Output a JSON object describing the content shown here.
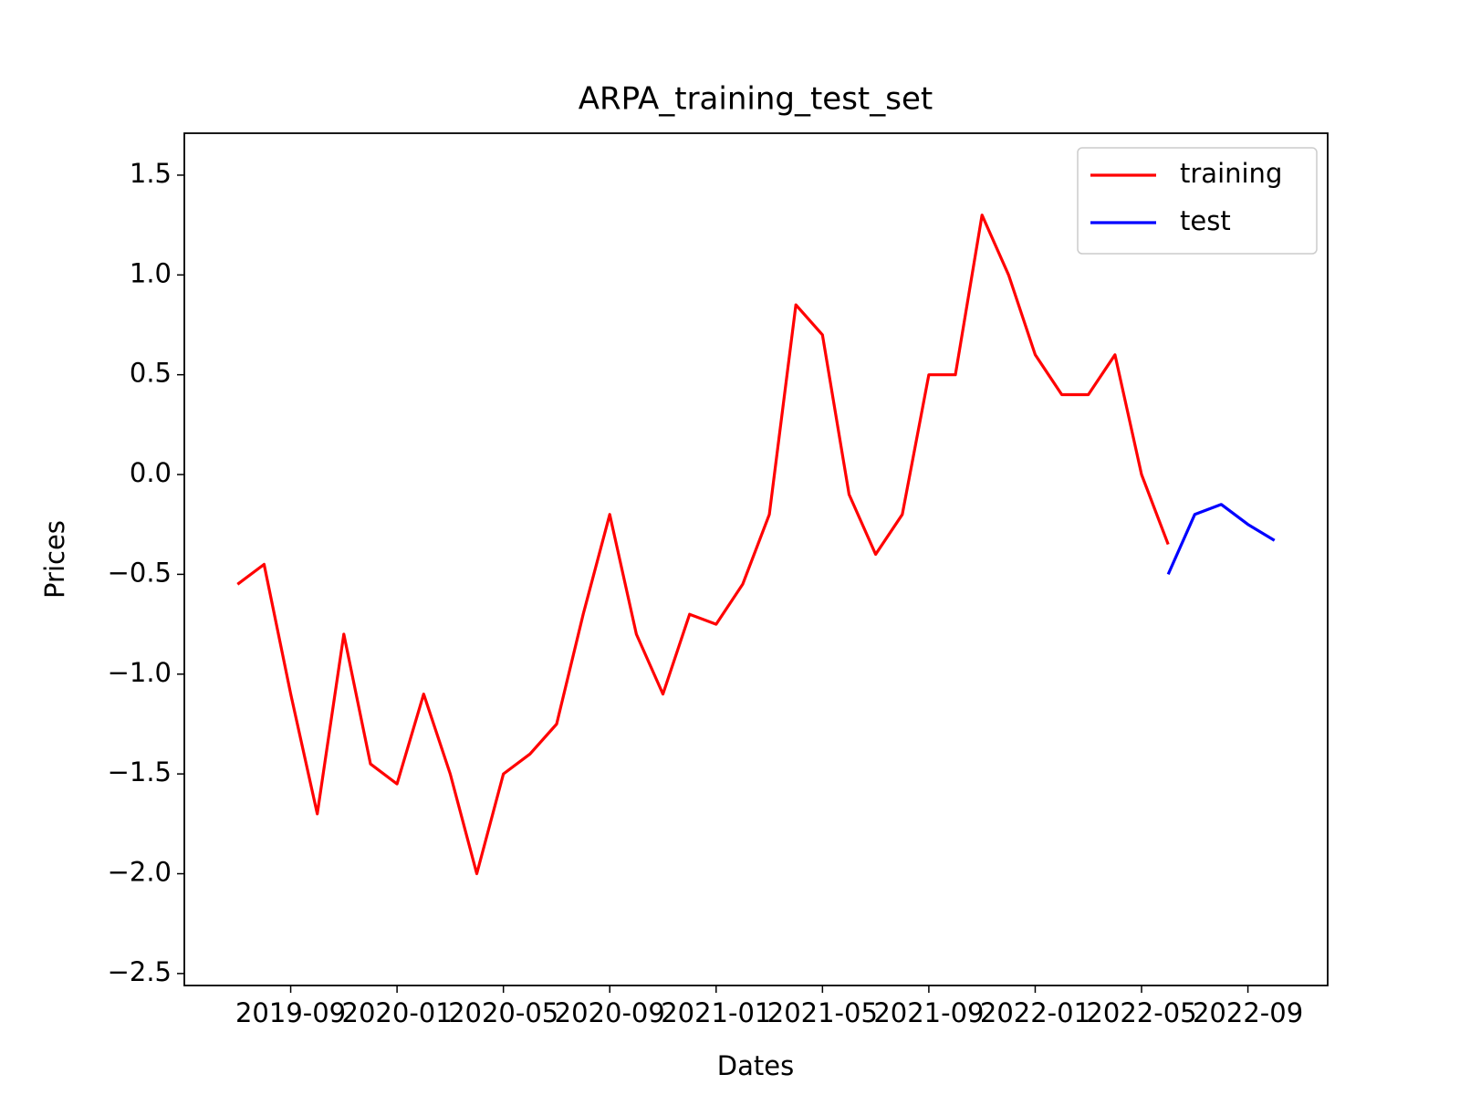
{
  "chart_data": {
    "type": "line",
    "title": "ARPA_training_test_set",
    "x_label": "Dates",
    "y_label": "Prices",
    "series": [
      {
        "name": "training",
        "color": "#ff0000",
        "x": [
          "2019-07",
          "2019-08",
          "2019-09",
          "2019-10",
          "2019-11",
          "2019-12",
          "2020-01",
          "2020-02",
          "2020-03",
          "2020-04",
          "2020-05",
          "2020-06",
          "2020-07",
          "2020-08",
          "2020-09",
          "2020-10",
          "2020-11",
          "2020-12",
          "2021-01",
          "2021-02",
          "2021-03",
          "2021-04",
          "2021-05",
          "2021-06",
          "2021-07",
          "2021-08",
          "2021-09",
          "2021-10",
          "2021-11",
          "2021-12",
          "2022-01",
          "2022-02",
          "2022-03",
          "2022-04",
          "2022-05",
          "2022-06"
        ],
        "values": [
          -0.55,
          -0.45,
          -1.1,
          -1.7,
          -0.8,
          -1.45,
          -1.55,
          -1.1,
          -1.5,
          -2.0,
          -1.5,
          -1.4,
          -1.25,
          -0.7,
          -0.2,
          -0.8,
          -1.1,
          -0.7,
          -0.75,
          -0.55,
          -0.2,
          0.85,
          0.7,
          -0.1,
          -0.4,
          -0.2,
          0.5,
          0.5,
          1.3,
          1.0,
          0.6,
          0.4,
          0.4,
          0.6,
          0.0,
          -0.35
        ]
      },
      {
        "name": "test",
        "color": "#0000ff",
        "x": [
          "2022-06",
          "2022-07",
          "2022-08",
          "2022-09",
          "2022-10"
        ],
        "values": [
          -0.5,
          -0.2,
          -0.15,
          -0.25,
          -0.33
        ]
      }
    ],
    "xlim": [
      "2019-05",
      "2022-12"
    ],
    "xticks": [
      "2019-09",
      "2020-01",
      "2020-05",
      "2020-09",
      "2021-01",
      "2021-05",
      "2021-09",
      "2022-01",
      "2022-05",
      "2022-09"
    ],
    "ylim": [
      -2.56,
      1.71
    ],
    "yticks": [
      {
        "value": 1.5,
        "label": "1.5"
      },
      {
        "value": 1,
        "label": "1.0"
      },
      {
        "value": 0.5,
        "label": "0.5"
      },
      {
        "value": 0,
        "label": "0.0"
      },
      {
        "value": -0.5,
        "label": "−0.5"
      },
      {
        "value": -1,
        "label": "−1.0"
      },
      {
        "value": -1.5,
        "label": "−1.5"
      },
      {
        "value": -2,
        "label": "−2.0"
      },
      {
        "value": -2.5,
        "label": "−2.5"
      }
    ],
    "legend": "upper right",
    "grid": false
  }
}
